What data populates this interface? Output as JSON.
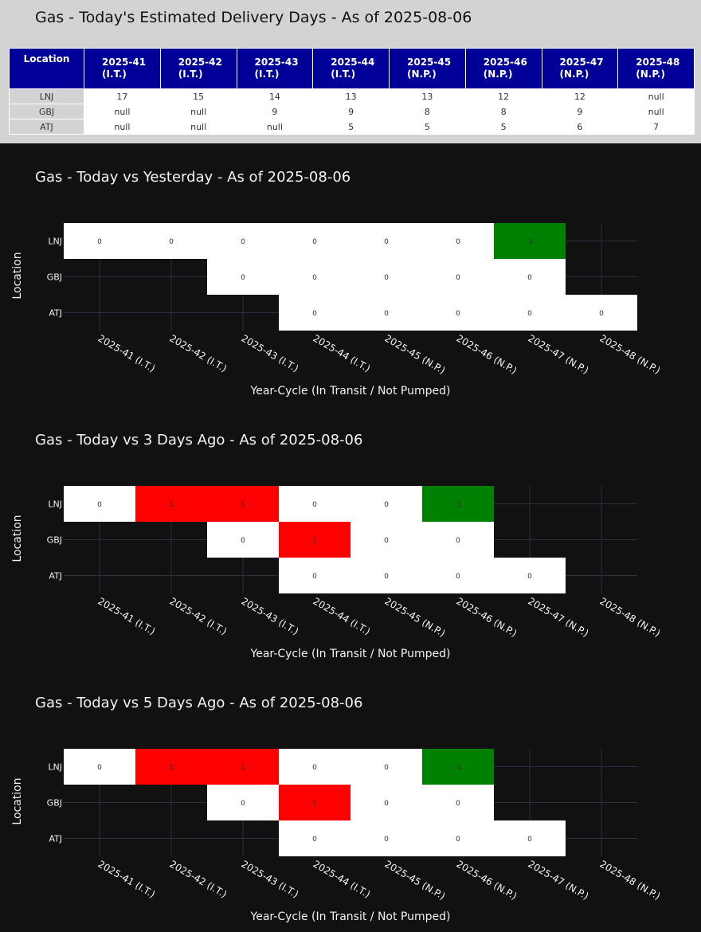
{
  "table": {
    "title": "Gas - Today's Estimated Delivery Days - As of 2025-08-06",
    "header_location": "Location",
    "columns": [
      {
        "week": "2025-41",
        "status": "(I.T.)"
      },
      {
        "week": "2025-42",
        "status": "(I.T.)"
      },
      {
        "week": "2025-43",
        "status": "(I.T.)"
      },
      {
        "week": "2025-44",
        "status": "(I.T.)"
      },
      {
        "week": "2025-45",
        "status": "(N.P.)"
      },
      {
        "week": "2025-46",
        "status": "(N.P.)"
      },
      {
        "week": "2025-47",
        "status": "(N.P.)"
      },
      {
        "week": "2025-48",
        "status": "(N.P.)"
      }
    ],
    "rows": [
      {
        "location": "LNJ",
        "cells": [
          "17",
          "15",
          "14",
          "13",
          "13",
          "12",
          "12",
          "null"
        ]
      },
      {
        "location": "GBJ",
        "cells": [
          "null",
          "null",
          "9",
          "9",
          "8",
          "8",
          "9",
          "null"
        ]
      },
      {
        "location": "ATJ",
        "cells": [
          "null",
          "null",
          "null",
          "5",
          "5",
          "5",
          "6",
          "7"
        ]
      }
    ]
  },
  "colors": {
    "zero": "#ffffff",
    "positive": "#ff0000",
    "negative": "#008000",
    "background": "#111111",
    "grid": "#2a3040"
  },
  "chart_data": [
    {
      "type": "heatmap",
      "title": "Gas - Today vs Yesterday - As of 2025-08-06",
      "xlabel": "Year-Cycle (In Transit / Not Pumped)",
      "ylabel": "Location",
      "x": [
        "2025-41 (I.T.)",
        "2025-42 (I.T.)",
        "2025-43 (I.T.)",
        "2025-44 (I.T.)",
        "2025-45 (N.P.)",
        "2025-46 (N.P.)",
        "2025-47 (N.P.)",
        "2025-48 (N.P.)"
      ],
      "y": [
        "LNJ",
        "GBJ",
        "ATJ"
      ],
      "z": [
        [
          0,
          0,
          0,
          0,
          0,
          0,
          -1,
          null
        ],
        [
          null,
          null,
          0,
          0,
          0,
          0,
          0,
          null
        ],
        [
          null,
          null,
          null,
          0,
          0,
          0,
          0,
          0
        ]
      ],
      "grid": true
    },
    {
      "type": "heatmap",
      "title": "Gas - Today vs 3 Days Ago - As of 2025-08-06",
      "xlabel": "Year-Cycle (In Transit / Not Pumped)",
      "ylabel": "Location",
      "x": [
        "2025-41 (I.T.)",
        "2025-42 (I.T.)",
        "2025-43 (I.T.)",
        "2025-44 (I.T.)",
        "2025-45 (N.P.)",
        "2025-46 (N.P.)",
        "2025-47 (N.P.)",
        "2025-48 (N.P.)"
      ],
      "y": [
        "LNJ",
        "GBJ",
        "ATJ"
      ],
      "z": [
        [
          0,
          1,
          1,
          0,
          0,
          -1,
          null,
          null
        ],
        [
          null,
          null,
          0,
          1,
          0,
          0,
          null,
          null
        ],
        [
          null,
          null,
          null,
          0,
          0,
          0,
          0,
          null
        ]
      ],
      "grid": true
    },
    {
      "type": "heatmap",
      "title": "Gas - Today vs 5 Days Ago - As of 2025-08-06",
      "xlabel": "Year-Cycle (In Transit / Not Pumped)",
      "ylabel": "Location",
      "x": [
        "2025-41 (I.T.)",
        "2025-42 (I.T.)",
        "2025-43 (I.T.)",
        "2025-44 (I.T.)",
        "2025-45 (N.P.)",
        "2025-46 (N.P.)",
        "2025-47 (N.P.)",
        "2025-48 (N.P.)"
      ],
      "y": [
        "LNJ",
        "GBJ",
        "ATJ"
      ],
      "z": [
        [
          0,
          1,
          1,
          0,
          0,
          -1,
          null,
          null
        ],
        [
          null,
          null,
          0,
          1,
          0,
          0,
          null,
          null
        ],
        [
          null,
          null,
          null,
          0,
          0,
          0,
          0,
          null
        ]
      ],
      "grid": true
    }
  ]
}
